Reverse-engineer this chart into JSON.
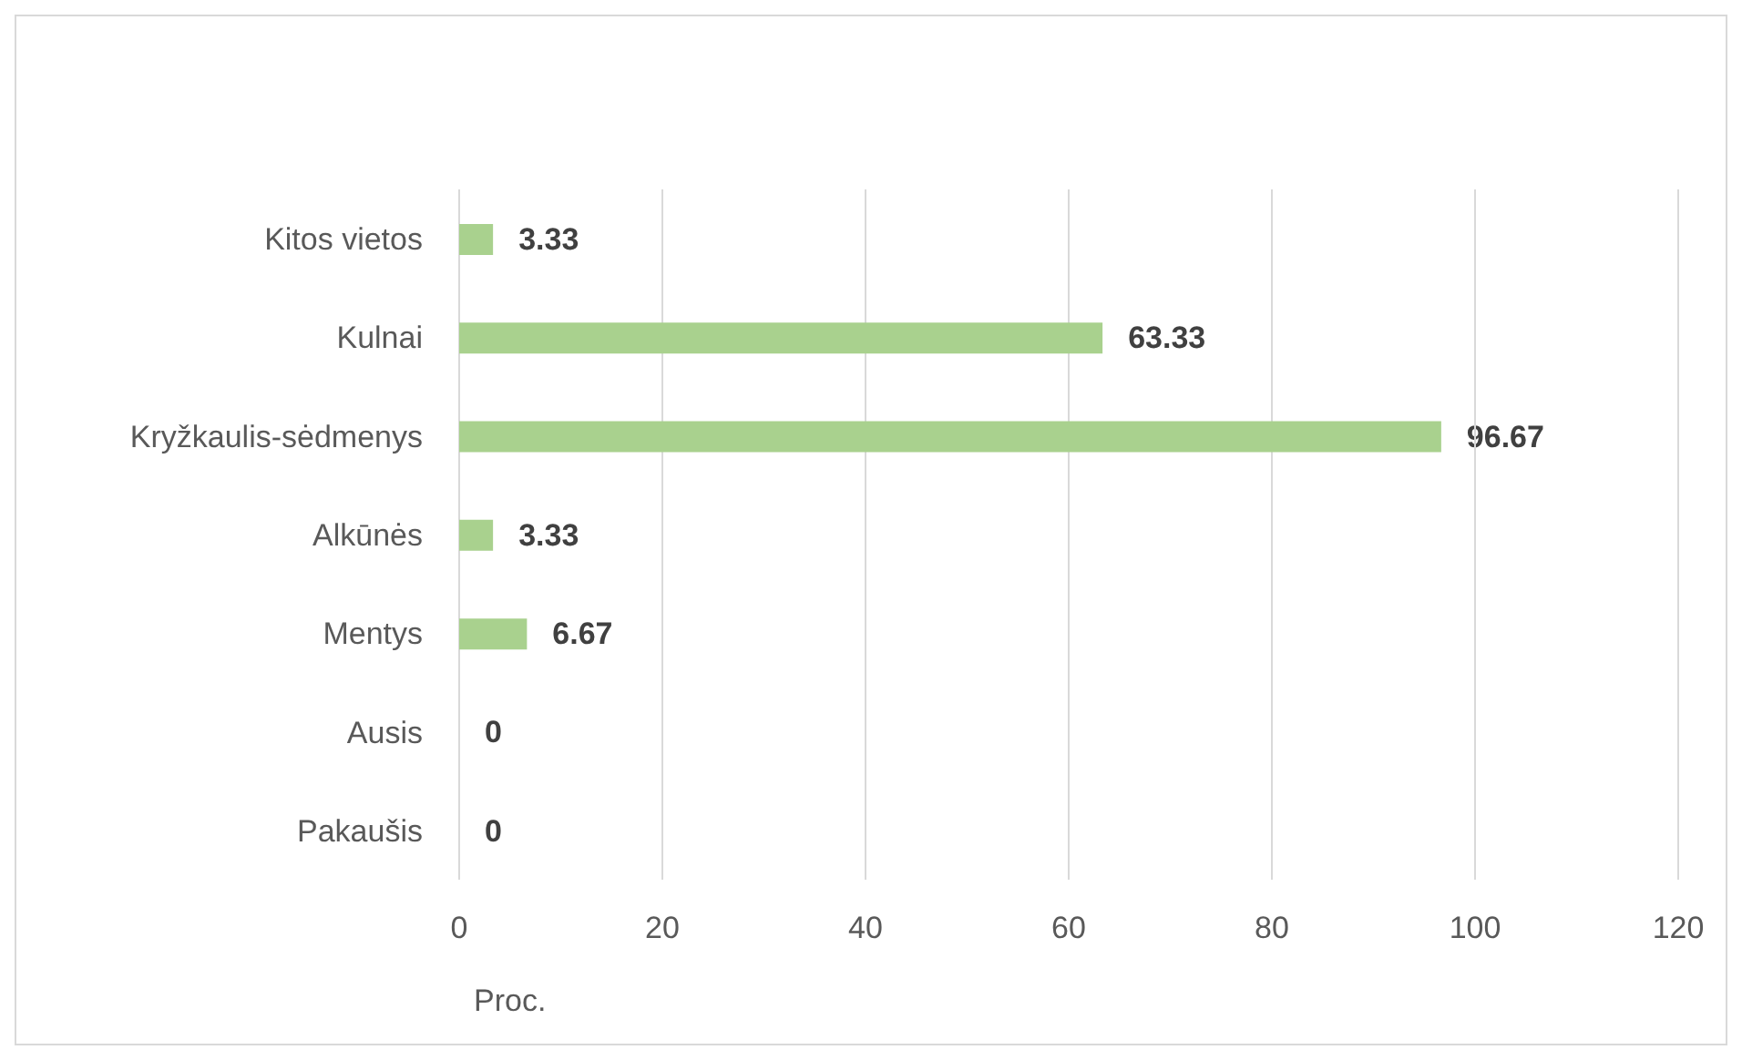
{
  "chart_data": {
    "type": "bar",
    "orientation": "horizontal",
    "xlabel": "Proc.",
    "categories": [
      "Kitos vietos",
      "Kulnai",
      "Kryžkaulis-sėdmenys",
      "Alkūnės",
      "Mentys",
      "Ausis",
      "Pakaušis"
    ],
    "values": [
      3.33,
      63.33,
      96.67,
      3.33,
      6.67,
      0,
      0
    ],
    "color": "#a9d18e",
    "xlim": [
      0,
      120
    ],
    "xticks": [
      0,
      20,
      40,
      60,
      80,
      100,
      120
    ],
    "grid": "x",
    "data_labels": true,
    "legend": false
  }
}
